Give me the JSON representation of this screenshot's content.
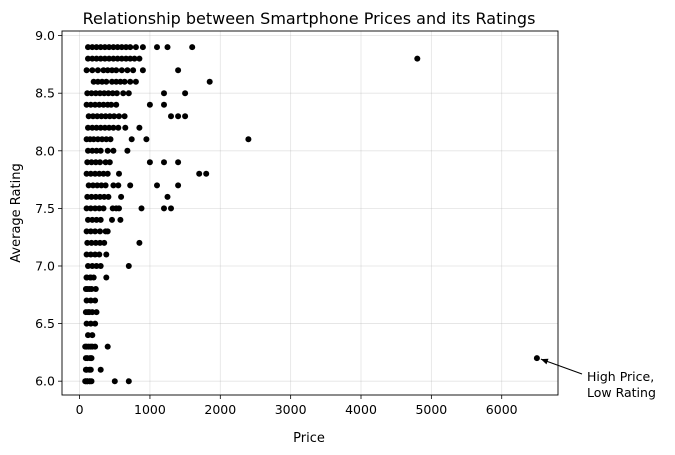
{
  "chart_data": {
    "type": "scatter",
    "title": "Relationship between Smartphone Prices and its Ratings",
    "xlabel": "Price",
    "ylabel": "Average Rating",
    "xlim": [
      -250,
      6800
    ],
    "ylim": [
      5.88,
      9.04
    ],
    "xticks": [
      0,
      1000,
      2000,
      3000,
      4000,
      5000,
      6000
    ],
    "yticks": [
      6.0,
      6.5,
      7.0,
      7.5,
      8.0,
      8.5,
      9.0
    ],
    "grid": true,
    "marker_color": "#000000",
    "annotation": {
      "text_lines": [
        "High Price,",
        "Low Rating"
      ],
      "point": [
        6500,
        6.2
      ]
    },
    "x": [
      120,
      180,
      240,
      300,
      360,
      420,
      480,
      540,
      600,
      660,
      720,
      800,
      900,
      1100,
      1250,
      1600,
      120,
      180,
      240,
      300,
      360,
      420,
      480,
      540,
      600,
      660,
      720,
      780,
      850,
      100,
      180,
      260,
      340,
      400,
      460,
      520,
      600,
      680,
      760,
      900,
      1400,
      200,
      260,
      320,
      380,
      460,
      520,
      580,
      640,
      720,
      800,
      1850,
      110,
      170,
      230,
      290,
      350,
      410,
      470,
      530,
      620,
      700,
      1200,
      1500,
      100,
      160,
      220,
      280,
      340,
      400,
      450,
      520,
      1000,
      1200,
      130,
      190,
      250,
      310,
      370,
      430,
      490,
      560,
      640,
      1300,
      1400,
      1500,
      120,
      180,
      240,
      300,
      360,
      420,
      480,
      550,
      650,
      850,
      100,
      150,
      200,
      260,
      320,
      380,
      440,
      740,
      950,
      120,
      180,
      240,
      300,
      400,
      480,
      680,
      110,
      170,
      230,
      290,
      370,
      430,
      1000,
      1200,
      1400,
      2400,
      100,
      160,
      220,
      280,
      340,
      400,
      560,
      130,
      190,
      250,
      310,
      370,
      480,
      550,
      720,
      110,
      170,
      230,
      290,
      350,
      410,
      1800,
      1700,
      100,
      160,
      220,
      280,
      340,
      520,
      560,
      1100,
      1400,
      120,
      180,
      240,
      300,
      100,
      160,
      220,
      290,
      370,
      590,
      110,
      170,
      230,
      290,
      350,
      460,
      580,
      880,
      1250,
      1200,
      1300,
      100,
      160,
      220,
      280,
      380,
      470,
      120,
      180,
      240,
      300,
      400,
      100,
      150,
      200,
      850,
      110,
      170,
      230,
      100,
      160,
      220,
      120,
      180,
      240,
      700,
      100,
      160,
      220,
      120,
      180,
      380,
      100,
      160,
      220,
      110,
      170,
      100,
      160,
      110,
      170,
      100,
      160,
      90,
      140,
      90,
      140,
      80,
      130,
      180,
      400,
      90,
      150,
      90,
      140,
      300,
      90,
      140,
      80,
      110,
      150,
      500,
      700,
      4800,
      6500
    ],
    "y": [
      8.9,
      8.9,
      8.9,
      8.9,
      8.9,
      8.9,
      8.9,
      8.9,
      8.9,
      8.9,
      8.9,
      8.9,
      8.9,
      8.9,
      8.9,
      8.9,
      8.8,
      8.8,
      8.8,
      8.8,
      8.8,
      8.8,
      8.8,
      8.8,
      8.8,
      8.8,
      8.8,
      8.8,
      8.8,
      8.7,
      8.7,
      8.7,
      8.7,
      8.7,
      8.7,
      8.7,
      8.7,
      8.7,
      8.7,
      8.7,
      8.7,
      8.6,
      8.6,
      8.6,
      8.6,
      8.6,
      8.6,
      8.6,
      8.6,
      8.6,
      8.6,
      8.6,
      8.5,
      8.5,
      8.5,
      8.5,
      8.5,
      8.5,
      8.5,
      8.5,
      8.5,
      8.5,
      8.5,
      8.5,
      8.4,
      8.4,
      8.4,
      8.4,
      8.4,
      8.4,
      8.4,
      8.4,
      8.4,
      8.4,
      8.3,
      8.3,
      8.3,
      8.3,
      8.3,
      8.3,
      8.3,
      8.3,
      8.3,
      8.3,
      8.3,
      8.3,
      8.2,
      8.2,
      8.2,
      8.2,
      8.2,
      8.2,
      8.2,
      8.2,
      8.2,
      8.2,
      8.1,
      8.1,
      8.1,
      8.1,
      8.1,
      8.1,
      8.1,
      8.1,
      8.1,
      8.0,
      8.0,
      8.0,
      8.0,
      8.0,
      8.0,
      8.0,
      7.9,
      7.9,
      7.9,
      7.9,
      7.9,
      7.9,
      7.9,
      7.9,
      7.9,
      8.1,
      7.8,
      7.8,
      7.8,
      7.8,
      7.8,
      7.8,
      7.8,
      7.7,
      7.7,
      7.7,
      7.7,
      7.7,
      7.7,
      7.7,
      7.7,
      7.6,
      7.6,
      7.6,
      7.6,
      7.6,
      7.6,
      7.8,
      7.8,
      7.5,
      7.5,
      7.5,
      7.5,
      7.5,
      7.5,
      7.5,
      7.7,
      7.7,
      7.4,
      7.4,
      7.4,
      7.4,
      7.3,
      7.3,
      7.3,
      7.3,
      7.3,
      7.6,
      7.2,
      7.2,
      7.2,
      7.2,
      7.2,
      7.4,
      7.4,
      7.5,
      7.6,
      7.5,
      7.5,
      7.1,
      7.1,
      7.1,
      7.1,
      7.1,
      7.5,
      7.0,
      7.0,
      7.0,
      7.0,
      7.3,
      6.9,
      6.9,
      6.9,
      7.2,
      6.8,
      6.8,
      6.8,
      6.7,
      6.7,
      6.7,
      6.6,
      6.6,
      6.6,
      7.0,
      6.5,
      6.5,
      6.5,
      6.4,
      6.4,
      6.9,
      6.3,
      6.3,
      6.3,
      6.2,
      6.2,
      6.1,
      6.1,
      6.0,
      6.0,
      6.9,
      6.9,
      6.8,
      6.8,
      6.6,
      6.6,
      6.3,
      6.3,
      6.3,
      6.3,
      6.2,
      6.2,
      6.1,
      6.1,
      6.1,
      6.0,
      6.0,
      6.0,
      6.0,
      6.0,
      6.0,
      6.0,
      8.8,
      6.2
    ]
  }
}
